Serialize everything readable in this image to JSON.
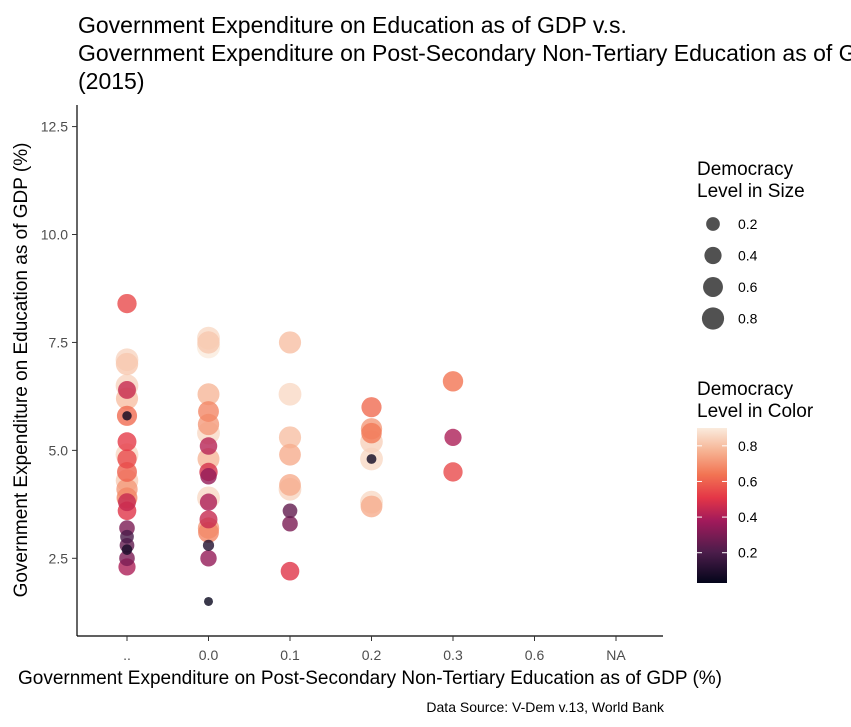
{
  "chart_data": {
    "type": "scatter",
    "title_lines": [
      "Government Expenditure on Education as of GDP v.s.",
      "Government Expenditure on Post-Secondary Non-Tertiary Education as of GDP (%)",
      "(2015)"
    ],
    "xlabel": "Government Expenditure on Post-Secondary Non-Tertiary Education as of GDP (%)",
    "ylabel": "Government Expenditure on Education as of GDP (%)",
    "caption": "Data Source: V-Dem v.13, World Bank",
    "x_categories": [
      "..",
      "0.0",
      "0.1",
      "0.2",
      "0.3",
      "0.6",
      "NA"
    ],
    "y_ticks": [
      2.5,
      5.0,
      7.5,
      10.0,
      12.5
    ],
    "y_tick_labels": [
      "2.5",
      "5.0",
      "7.5",
      "10.0",
      "12.5"
    ],
    "ylim": [
      0.7,
      13.0
    ],
    "legend_size": {
      "title_lines": [
        "Democracy",
        "Level in Size"
      ],
      "values": [
        0.2,
        0.4,
        0.6,
        0.8
      ],
      "labels": [
        "0.2",
        "0.4",
        "0.6",
        "0.8"
      ]
    },
    "legend_color": {
      "title_lines": [
        "Democracy",
        "Level in Color"
      ],
      "ticks": [
        0.2,
        0.4,
        0.6,
        0.8
      ],
      "tick_labels": [
        "0.2",
        "0.4",
        "0.6",
        "0.8"
      ],
      "range": [
        0.03,
        0.9
      ]
    },
    "points": [
      {
        "x": "..",
        "y": 8.4,
        "d": 0.55
      },
      {
        "x": "..",
        "y": 7.1,
        "d": 0.85
      },
      {
        "x": "..",
        "y": 7.0,
        "d": 0.82
      },
      {
        "x": "..",
        "y": 6.5,
        "d": 0.85
      },
      {
        "x": "..",
        "y": 6.4,
        "d": 0.45
      },
      {
        "x": "..",
        "y": 6.2,
        "d": 0.8
      },
      {
        "x": "..",
        "y": 5.8,
        "d": 0.62
      },
      {
        "x": "..",
        "y": 5.8,
        "d": 0.05
      },
      {
        "x": "..",
        "y": 5.2,
        "d": 0.52
      },
      {
        "x": "..",
        "y": 4.9,
        "d": 0.86
      },
      {
        "x": "..",
        "y": 4.8,
        "d": 0.55
      },
      {
        "x": "..",
        "y": 4.5,
        "d": 0.6
      },
      {
        "x": "..",
        "y": 4.3,
        "d": 0.83
      },
      {
        "x": "..",
        "y": 4.1,
        "d": 0.72
      },
      {
        "x": "..",
        "y": 3.9,
        "d": 0.68
      },
      {
        "x": "..",
        "y": 3.8,
        "d": 0.45
      },
      {
        "x": "..",
        "y": 3.6,
        "d": 0.5
      },
      {
        "x": "..",
        "y": 3.2,
        "d": 0.3
      },
      {
        "x": "..",
        "y": 3.0,
        "d": 0.2
      },
      {
        "x": "..",
        "y": 2.8,
        "d": 0.25
      },
      {
        "x": "..",
        "y": 2.7,
        "d": 0.08
      },
      {
        "x": "..",
        "y": 2.5,
        "d": 0.3
      },
      {
        "x": "..",
        "y": 2.3,
        "d": 0.4
      },
      {
        "x": "0.0",
        "y": 7.6,
        "d": 0.86
      },
      {
        "x": "0.0",
        "y": 7.5,
        "d": 0.82
      },
      {
        "x": "0.0",
        "y": 7.4,
        "d": 0.9
      },
      {
        "x": "0.0",
        "y": 6.3,
        "d": 0.78
      },
      {
        "x": "0.0",
        "y": 5.9,
        "d": 0.68
      },
      {
        "x": "0.0",
        "y": 5.6,
        "d": 0.72
      },
      {
        "x": "0.0",
        "y": 5.4,
        "d": 0.86
      },
      {
        "x": "0.0",
        "y": 5.1,
        "d": 0.42
      },
      {
        "x": "0.0",
        "y": 4.8,
        "d": 0.78
      },
      {
        "x": "0.0",
        "y": 4.5,
        "d": 0.48
      },
      {
        "x": "0.0",
        "y": 4.4,
        "d": 0.35
      },
      {
        "x": "0.0",
        "y": 3.9,
        "d": 0.86
      },
      {
        "x": "0.0",
        "y": 3.8,
        "d": 0.4
      },
      {
        "x": "0.0",
        "y": 3.4,
        "d": 0.45
      },
      {
        "x": "0.0",
        "y": 3.2,
        "d": 0.72
      },
      {
        "x": "0.0",
        "y": 3.1,
        "d": 0.68
      },
      {
        "x": "0.0",
        "y": 2.8,
        "d": 0.1
      },
      {
        "x": "0.0",
        "y": 2.5,
        "d": 0.35
      },
      {
        "x": "0.0",
        "y": 1.5,
        "d": 0.04
      },
      {
        "x": "0.1",
        "y": 7.5,
        "d": 0.8
      },
      {
        "x": "0.1",
        "y": 6.3,
        "d": 0.86
      },
      {
        "x": "0.1",
        "y": 5.3,
        "d": 0.8
      },
      {
        "x": "0.1",
        "y": 4.9,
        "d": 0.76
      },
      {
        "x": "0.1",
        "y": 4.2,
        "d": 0.76
      },
      {
        "x": "0.1",
        "y": 4.1,
        "d": 0.85
      },
      {
        "x": "0.1",
        "y": 3.6,
        "d": 0.25
      },
      {
        "x": "0.1",
        "y": 3.3,
        "d": 0.3
      },
      {
        "x": "0.1",
        "y": 2.2,
        "d": 0.5
      },
      {
        "x": "0.2",
        "y": 6.0,
        "d": 0.62
      },
      {
        "x": "0.2",
        "y": 5.5,
        "d": 0.72
      },
      {
        "x": "0.2",
        "y": 5.4,
        "d": 0.65
      },
      {
        "x": "0.2",
        "y": 5.2,
        "d": 0.84
      },
      {
        "x": "0.2",
        "y": 4.8,
        "d": 0.86
      },
      {
        "x": "0.2",
        "y": 4.8,
        "d": 0.06
      },
      {
        "x": "0.2",
        "y": 3.8,
        "d": 0.86
      },
      {
        "x": "0.2",
        "y": 3.7,
        "d": 0.76
      },
      {
        "x": "0.3",
        "y": 6.6,
        "d": 0.64
      },
      {
        "x": "0.3",
        "y": 5.3,
        "d": 0.4
      },
      {
        "x": "0.3",
        "y": 4.5,
        "d": 0.55
      }
    ]
  }
}
